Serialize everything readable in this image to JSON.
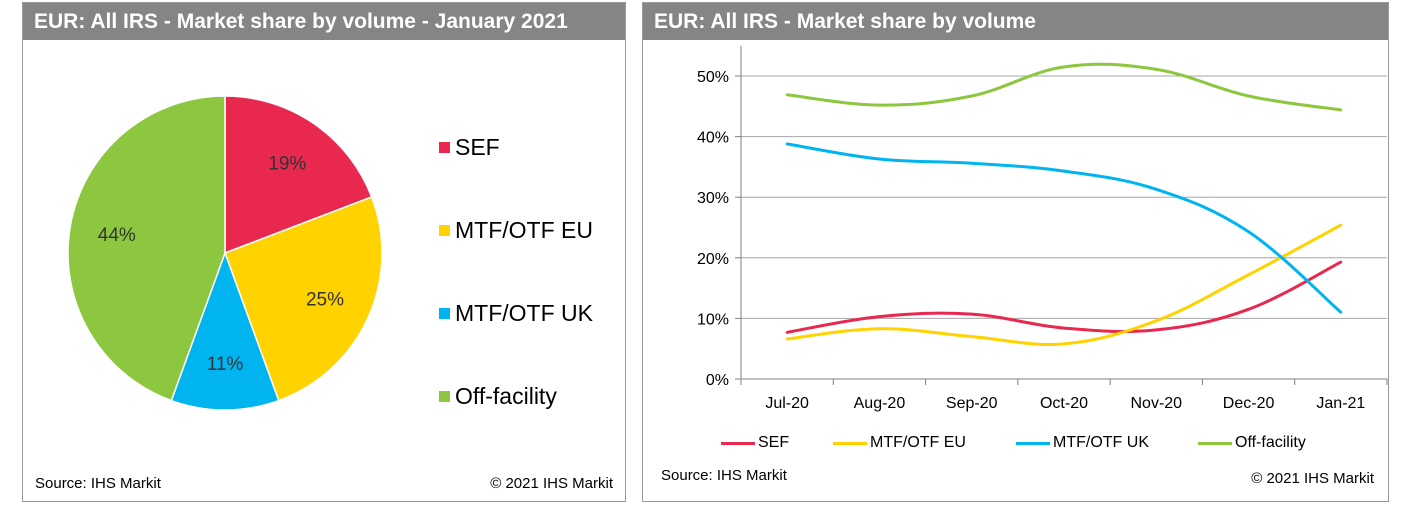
{
  "left_panel": {
    "title": "EUR: All IRS - Market share by volume - January 2021",
    "source": "Source: IHS Markit",
    "copyright": "© 2021 IHS Markit"
  },
  "right_panel": {
    "title": "EUR: All IRS - Market share by volume",
    "source": "Source: IHS Markit",
    "copyright": "© 2021 IHS Markit"
  },
  "chart_data": [
    {
      "type": "pie",
      "title": "EUR: All IRS - Market share by volume - January 2021",
      "legend_position": "right",
      "slices": [
        {
          "name": "SEF",
          "value": 19,
          "label": "19%",
          "color": "#e8284f"
        },
        {
          "name": "MTF/OTF EU",
          "value": 25,
          "label": "25%",
          "color": "#ffd200"
        },
        {
          "name": "MTF/OTF UK",
          "value": 11,
          "label": "11%",
          "color": "#00b5ef"
        },
        {
          "name": "Off-facility",
          "value": 44,
          "label": "44%",
          "color": "#8dc63f"
        }
      ]
    },
    {
      "type": "line",
      "title": "EUR: All IRS - Market share by volume",
      "categories": [
        "Jul-20",
        "Aug-20",
        "Sep-20",
        "Oct-20",
        "Nov-20",
        "Dec-20",
        "Jan-21"
      ],
      "ylim": [
        0,
        55
      ],
      "yticks": [
        0,
        10,
        20,
        30,
        40,
        50
      ],
      "ytick_labels": [
        "0%",
        "10%",
        "20%",
        "30%",
        "40%",
        "50%"
      ],
      "grid": true,
      "legend_position": "bottom",
      "series": [
        {
          "name": "SEF",
          "color": "#e8284f",
          "values": [
            7.7,
            10.3,
            10.7,
            8.4,
            8.1,
            11.5,
            19.3
          ]
        },
        {
          "name": "MTF/OTF EU",
          "color": "#ffd200",
          "values": [
            6.6,
            8.3,
            7.0,
            5.8,
            9.6,
            17.2,
            25.4
          ]
        },
        {
          "name": "MTF/OTF UK",
          "color": "#00b5ef",
          "values": [
            38.8,
            36.3,
            35.6,
            34.3,
            31.3,
            24.3,
            11.0
          ]
        },
        {
          "name": "Off-facility",
          "color": "#8dc63f",
          "values": [
            46.9,
            45.2,
            46.7,
            51.5,
            51.1,
            46.7,
            44.4
          ]
        }
      ]
    }
  ]
}
